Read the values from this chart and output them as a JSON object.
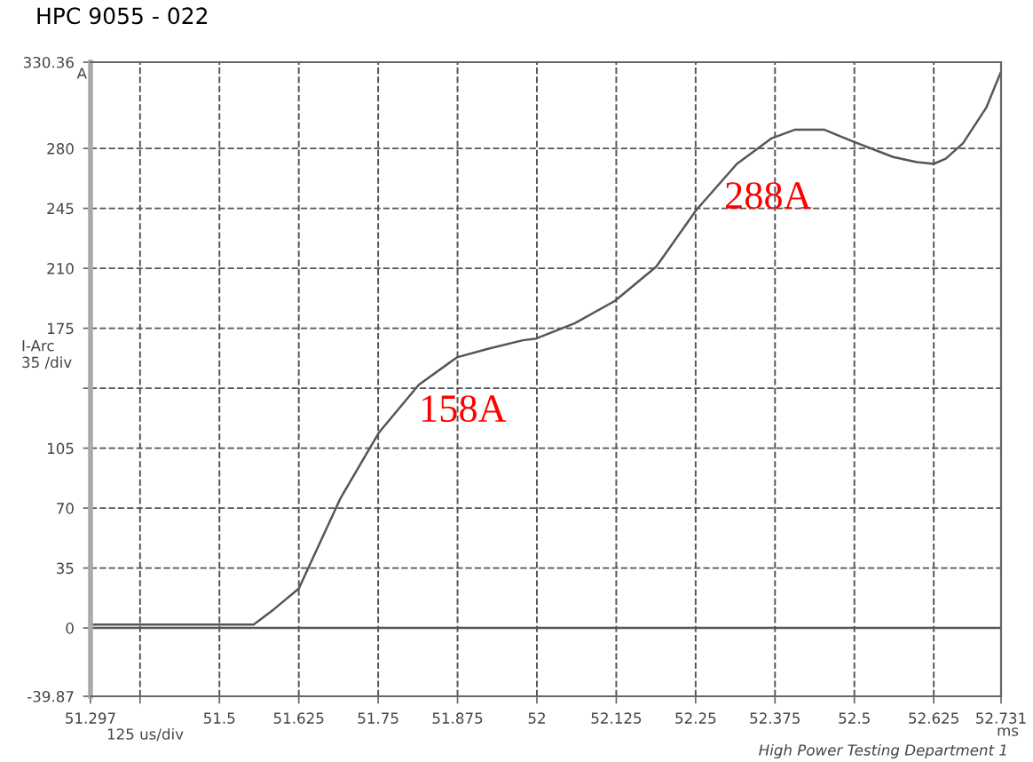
{
  "chart_data": {
    "type": "line",
    "title": "HPC 9055 - 022",
    "xlabel": "125 us/div",
    "ylabel": "I-Arc\n35 /div",
    "x": [
      51.297,
      51.554,
      51.586,
      51.625,
      51.691,
      51.751,
      51.814,
      51.874,
      51.923,
      51.978,
      51.999,
      52.06,
      52.123,
      52.188,
      52.251,
      52.315,
      52.37,
      52.407,
      52.452,
      52.498,
      52.561,
      52.598,
      52.625,
      52.644,
      52.671,
      52.708,
      52.73
    ],
    "series": [
      {
        "color": "#555555",
        "values": [
          2,
          2,
          11,
          23,
          76,
          114,
          142,
          158,
          163,
          168,
          169,
          178,
          191,
          211,
          244,
          271,
          286,
          291,
          291,
          284,
          275,
          272,
          271,
          274,
          283,
          304,
          324
        ]
      }
    ],
    "xlim": [
      51.297,
      52.731
    ],
    "xticks": [
      51.297,
      {
        "value": 51.375,
        "label": null
      },
      51.5,
      51.625,
      51.75,
      51.875,
      52,
      52.125,
      52.25,
      52.375,
      52.5,
      52.625,
      52.731
    ],
    "ylim": [
      -39.87,
      330.36
    ],
    "yticks": [
      -39.87,
      0,
      35,
      70,
      105,
      {
        "value": 140,
        "label": null
      },
      175,
      210,
      245,
      280,
      330.36
    ],
    "grid": true,
    "line_style": "solid",
    "marker": "none",
    "legend": false,
    "ref_lines": [
      {
        "axis": "y",
        "value": 0,
        "color": "#555555",
        "line_style": "solid"
      }
    ],
    "annotations": [
      "158A",
      "288A",
      "A",
      "ms",
      "High Power Testing Department 1"
    ]
  }
}
